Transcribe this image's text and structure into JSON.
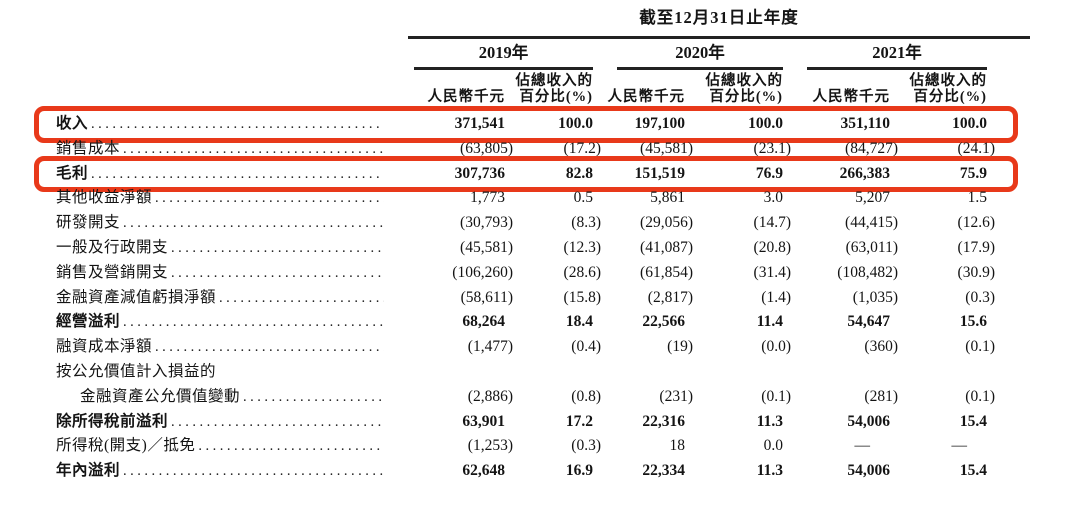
{
  "colors": {
    "accent": "#e8391a",
    "rule": "#222222"
  },
  "header": {
    "period_title": "截至12月31日止年度",
    "year_groups": [
      {
        "year": "2019年",
        "amount_label": "人民幣千元",
        "pct_label_line1": "佔總收入的",
        "pct_label_line2": "百分比(%)"
      },
      {
        "year": "2020年",
        "amount_label": "人民幣千元",
        "pct_label_line1": "佔總收入的",
        "pct_label_line2": "百分比(%)"
      },
      {
        "year": "2021年",
        "amount_label": "人民幣千元",
        "pct_label_line1": "佔總收入的",
        "pct_label_line2": "百分比(%)"
      }
    ]
  },
  "rows": [
    {
      "label": "收入",
      "style": "bold",
      "highlight": true,
      "values": [
        "371,541",
        "100.0",
        "197,100",
        "100.0",
        "351,110",
        "100.0"
      ]
    },
    {
      "label": "銷售成本",
      "values": [
        "(63,805)",
        "(17.2)",
        "(45,581)",
        "(23.1)",
        "(84,727)",
        "(24.1)"
      ]
    },
    {
      "label": "毛利",
      "style": "bold",
      "highlight": true,
      "values": [
        "307,736",
        "82.8",
        "151,519",
        "76.9",
        "266,383",
        "75.9"
      ]
    },
    {
      "label": "其他收益淨額",
      "values": [
        "1,773",
        "0.5",
        "5,861",
        "3.0",
        "5,207",
        "1.5"
      ]
    },
    {
      "label": "研發開支",
      "values": [
        "(30,793)",
        "(8.3)",
        "(29,056)",
        "(14.7)",
        "(44,415)",
        "(12.6)"
      ]
    },
    {
      "label": "一般及行政開支",
      "values": [
        "(45,581)",
        "(12.3)",
        "(41,087)",
        "(20.8)",
        "(63,011)",
        "(17.9)"
      ]
    },
    {
      "label": "銷售及營銷開支",
      "values": [
        "(106,260)",
        "(28.6)",
        "(61,854)",
        "(31.4)",
        "(108,482)",
        "(30.9)"
      ]
    },
    {
      "label": "金融資產減值虧損淨額",
      "values": [
        "(58,611)",
        "(15.8)",
        "(2,817)",
        "(1.4)",
        "(1,035)",
        "(0.3)"
      ]
    },
    {
      "label": "經營溢利",
      "style": "bold",
      "values": [
        "68,264",
        "18.4",
        "22,566",
        "11.4",
        "54,647",
        "15.6"
      ]
    },
    {
      "label": "融資成本淨額",
      "values": [
        "(1,477)",
        "(0.4)",
        "(19)",
        "(0.0)",
        "(360)",
        "(0.1)"
      ]
    },
    {
      "label": "按公允價值計入損益的",
      "no_leader": true,
      "values": [
        "",
        "",
        "",
        "",
        "",
        ""
      ]
    },
    {
      "label": "金融資產公允價值變動",
      "indent": true,
      "values": [
        "(2,886)",
        "(0.8)",
        "(231)",
        "(0.1)",
        "(281)",
        "(0.1)"
      ]
    },
    {
      "label": "除所得稅前溢利",
      "style": "bold",
      "values": [
        "63,901",
        "17.2",
        "22,316",
        "11.3",
        "54,006",
        "15.4"
      ]
    },
    {
      "label": "所得稅(開支)／抵免",
      "values": [
        "(1,253)",
        "(0.3)",
        "18",
        "0.0",
        "—",
        "—"
      ]
    },
    {
      "label": "年內溢利",
      "style": "bold",
      "values": [
        "62,648",
        "16.9",
        "22,334",
        "11.3",
        "54,006",
        "15.4"
      ]
    }
  ]
}
